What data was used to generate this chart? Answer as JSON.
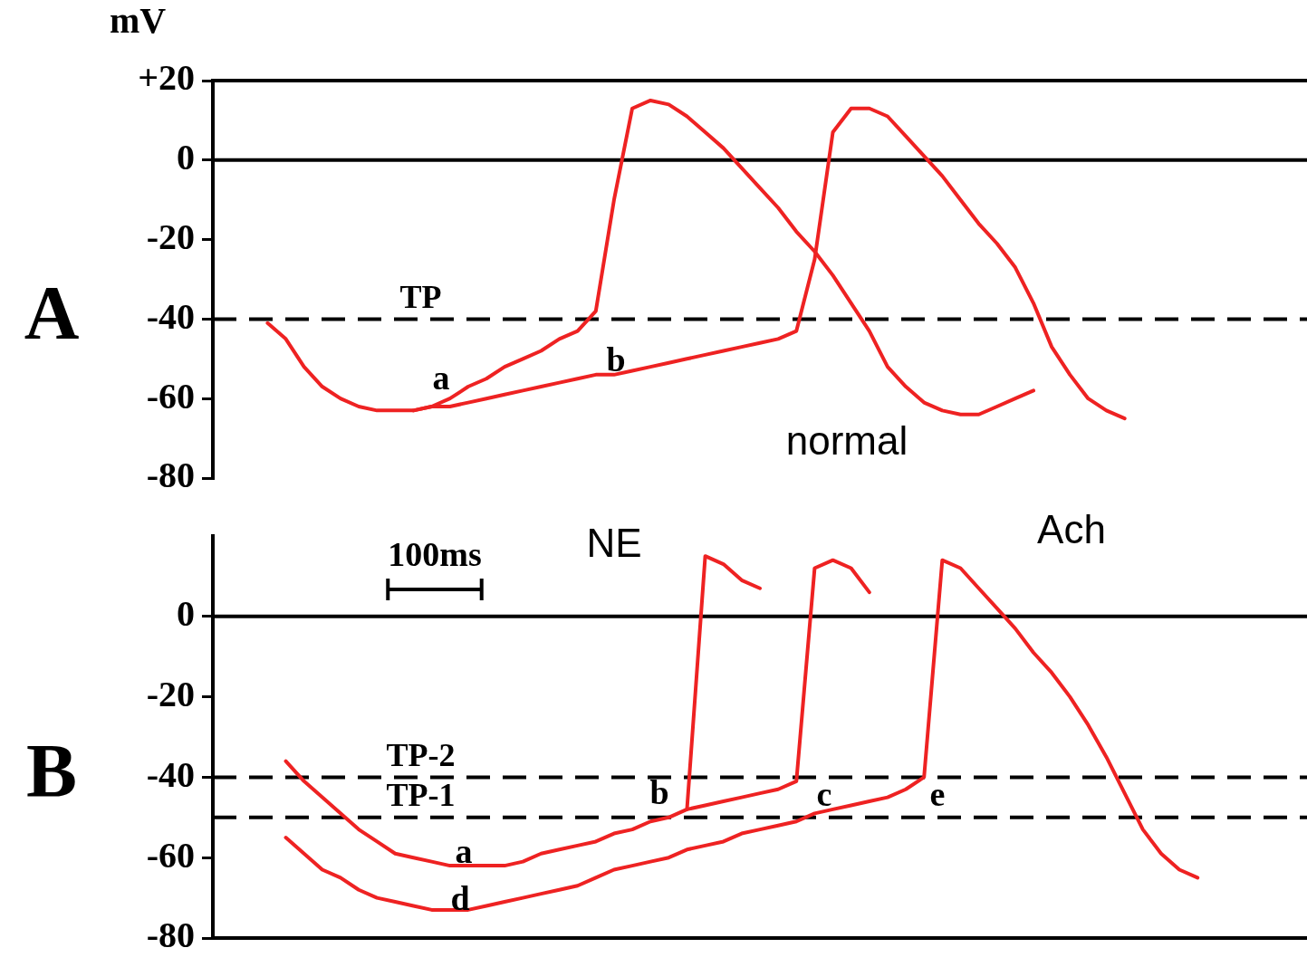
{
  "chart_data": [
    {
      "type": "line",
      "title": "A",
      "ylabel": "mV",
      "ylim": [
        -80,
        20
      ],
      "yticks": [
        {
          "value": 20,
          "label": "+20"
        },
        0,
        -20,
        -40,
        -60,
        -80
      ],
      "tick_labels": "y",
      "marker": "none",
      "categories": [
        null,
        null,
        null,
        null,
        null,
        null,
        null,
        null,
        null,
        null,
        null,
        null,
        null,
        null,
        null,
        null,
        null,
        null,
        null,
        null,
        null,
        null,
        null,
        null,
        null,
        null,
        null,
        null,
        null,
        null,
        null,
        null,
        null,
        null,
        null,
        null,
        null,
        null,
        null,
        null,
        null,
        null,
        null,
        null,
        null,
        null,
        null,
        null,
        null,
        null,
        null,
        null,
        null,
        null,
        null,
        null,
        null,
        null,
        null,
        null,
        null
      ],
      "ref_lines": [
        {
          "axis": "y",
          "value": 0,
          "color": "#000000",
          "line_style": "solid"
        },
        {
          "axis": "y",
          "value": -40,
          "label": "TP",
          "color": "#000000",
          "line_style": "dashed"
        }
      ],
      "annotations": [
        "a",
        "b",
        "normal"
      ],
      "series": [
        {
          "color": "#ee2222",
          "values": [
            null,
            null,
            null,
            null,
            null,
            null,
            null,
            null,
            null,
            null,
            null,
            -63,
            -62,
            -60,
            -57,
            -55,
            -52,
            -50,
            -48,
            -45,
            -43,
            -38,
            -10,
            13,
            15,
            14,
            11,
            7,
            3,
            -2,
            -7,
            -12,
            -18,
            -23,
            -29,
            -36,
            -43,
            -52,
            -57,
            -61,
            -63,
            -64,
            -64,
            -62,
            -60,
            -58,
            null,
            null,
            null,
            null,
            null,
            null,
            null,
            null,
            null,
            null,
            null,
            null,
            null,
            null,
            null
          ]
        },
        {
          "color": "#ee2222",
          "values": [
            null,
            null,
            null,
            -41,
            -45,
            -52,
            -57,
            -60,
            -62,
            -63,
            -63,
            -63,
            -62,
            -62,
            -61,
            -60,
            -59,
            -58,
            -57,
            -56,
            -55,
            -54,
            -54,
            -53,
            -52,
            -51,
            -50,
            -49,
            -48,
            -47,
            -46,
            -45,
            -43,
            -25,
            7,
            13,
            13,
            11,
            6,
            1,
            -4,
            -10,
            -16,
            -21,
            -27,
            -36,
            -47,
            -54,
            -60,
            -63,
            -65,
            null,
            null,
            null,
            null,
            null,
            null,
            null,
            null,
            null,
            null
          ]
        }
      ]
    },
    {
      "type": "line",
      "title": "B",
      "ylim": [
        -80,
        20
      ],
      "yticks": [
        0,
        -20,
        -40,
        -60,
        -80
      ],
      "tick_labels": "y",
      "marker": "none",
      "categories": [
        null,
        null,
        null,
        null,
        null,
        null,
        null,
        null,
        null,
        null,
        null,
        null,
        null,
        null,
        null,
        null,
        null,
        null,
        null,
        null,
        null,
        null,
        null,
        null,
        null,
        null,
        null,
        null,
        null,
        null,
        null,
        null,
        null,
        null,
        null,
        null,
        null,
        null,
        null,
        null,
        null,
        null,
        null,
        null,
        null,
        null,
        null,
        null,
        null,
        null,
        null,
        null,
        null,
        null,
        null,
        null,
        null,
        null,
        null,
        null,
        null
      ],
      "ref_lines": [
        {
          "axis": "y",
          "value": 0,
          "color": "#000000",
          "line_style": "solid"
        },
        {
          "axis": "y",
          "value": -40,
          "label": "TP-2",
          "color": "#000000",
          "line_style": "dashed"
        },
        {
          "axis": "y",
          "value": -50,
          "label": "TP-1",
          "color": "#000000",
          "line_style": "dashed"
        }
      ],
      "annotations": [
        "100ms",
        "NE",
        "Ach",
        "b",
        "c",
        "e",
        "a",
        "d"
      ],
      "series": [
        {
          "color": "#ee2222",
          "values": [
            null,
            null,
            null,
            null,
            -36,
            -41,
            -45,
            -49,
            -53,
            -56,
            -59,
            -60,
            -61,
            -62,
            -62,
            -62,
            -62,
            -61,
            -59,
            -58,
            -57,
            -56,
            -54,
            -53,
            -51,
            -50,
            -48,
            15,
            13,
            9,
            7,
            null,
            null,
            null,
            null,
            null,
            null,
            null,
            null,
            null,
            null,
            null,
            null,
            null,
            null,
            null,
            null,
            null,
            null,
            null,
            null,
            null,
            null,
            null,
            null,
            null,
            null,
            null,
            null,
            null,
            null
          ]
        },
        {
          "color": "#ee2222",
          "values": [
            null,
            null,
            null,
            null,
            null,
            null,
            null,
            null,
            null,
            null,
            null,
            null,
            null,
            null,
            null,
            null,
            null,
            null,
            null,
            null,
            null,
            null,
            null,
            null,
            null,
            null,
            -48,
            -47,
            -46,
            -45,
            -44,
            -43,
            -41,
            12,
            14,
            12,
            6,
            null,
            null,
            null,
            null,
            null,
            null,
            null,
            null,
            null,
            null,
            null,
            null,
            null,
            null,
            null,
            null,
            null,
            null,
            null,
            null,
            null,
            null,
            null,
            null
          ]
        },
        {
          "color": "#ee2222",
          "values": [
            null,
            null,
            null,
            null,
            -55,
            -59,
            -63,
            -65,
            -68,
            -70,
            -71,
            -72,
            -73,
            -73,
            -73,
            -72,
            -71,
            -70,
            -69,
            -68,
            -67,
            -65,
            -63,
            -62,
            -61,
            -60,
            -58,
            -57,
            -56,
            -54,
            -53,
            -52,
            -51,
            -49,
            -48,
            -47,
            -46,
            -45,
            -43,
            -40,
            14,
            12,
            7,
            2,
            -3,
            -9,
            -14,
            -20,
            -27,
            -35,
            -44,
            -53,
            -59,
            -63,
            -65,
            null,
            null,
            null,
            null,
            null,
            null
          ]
        }
      ]
    }
  ]
}
